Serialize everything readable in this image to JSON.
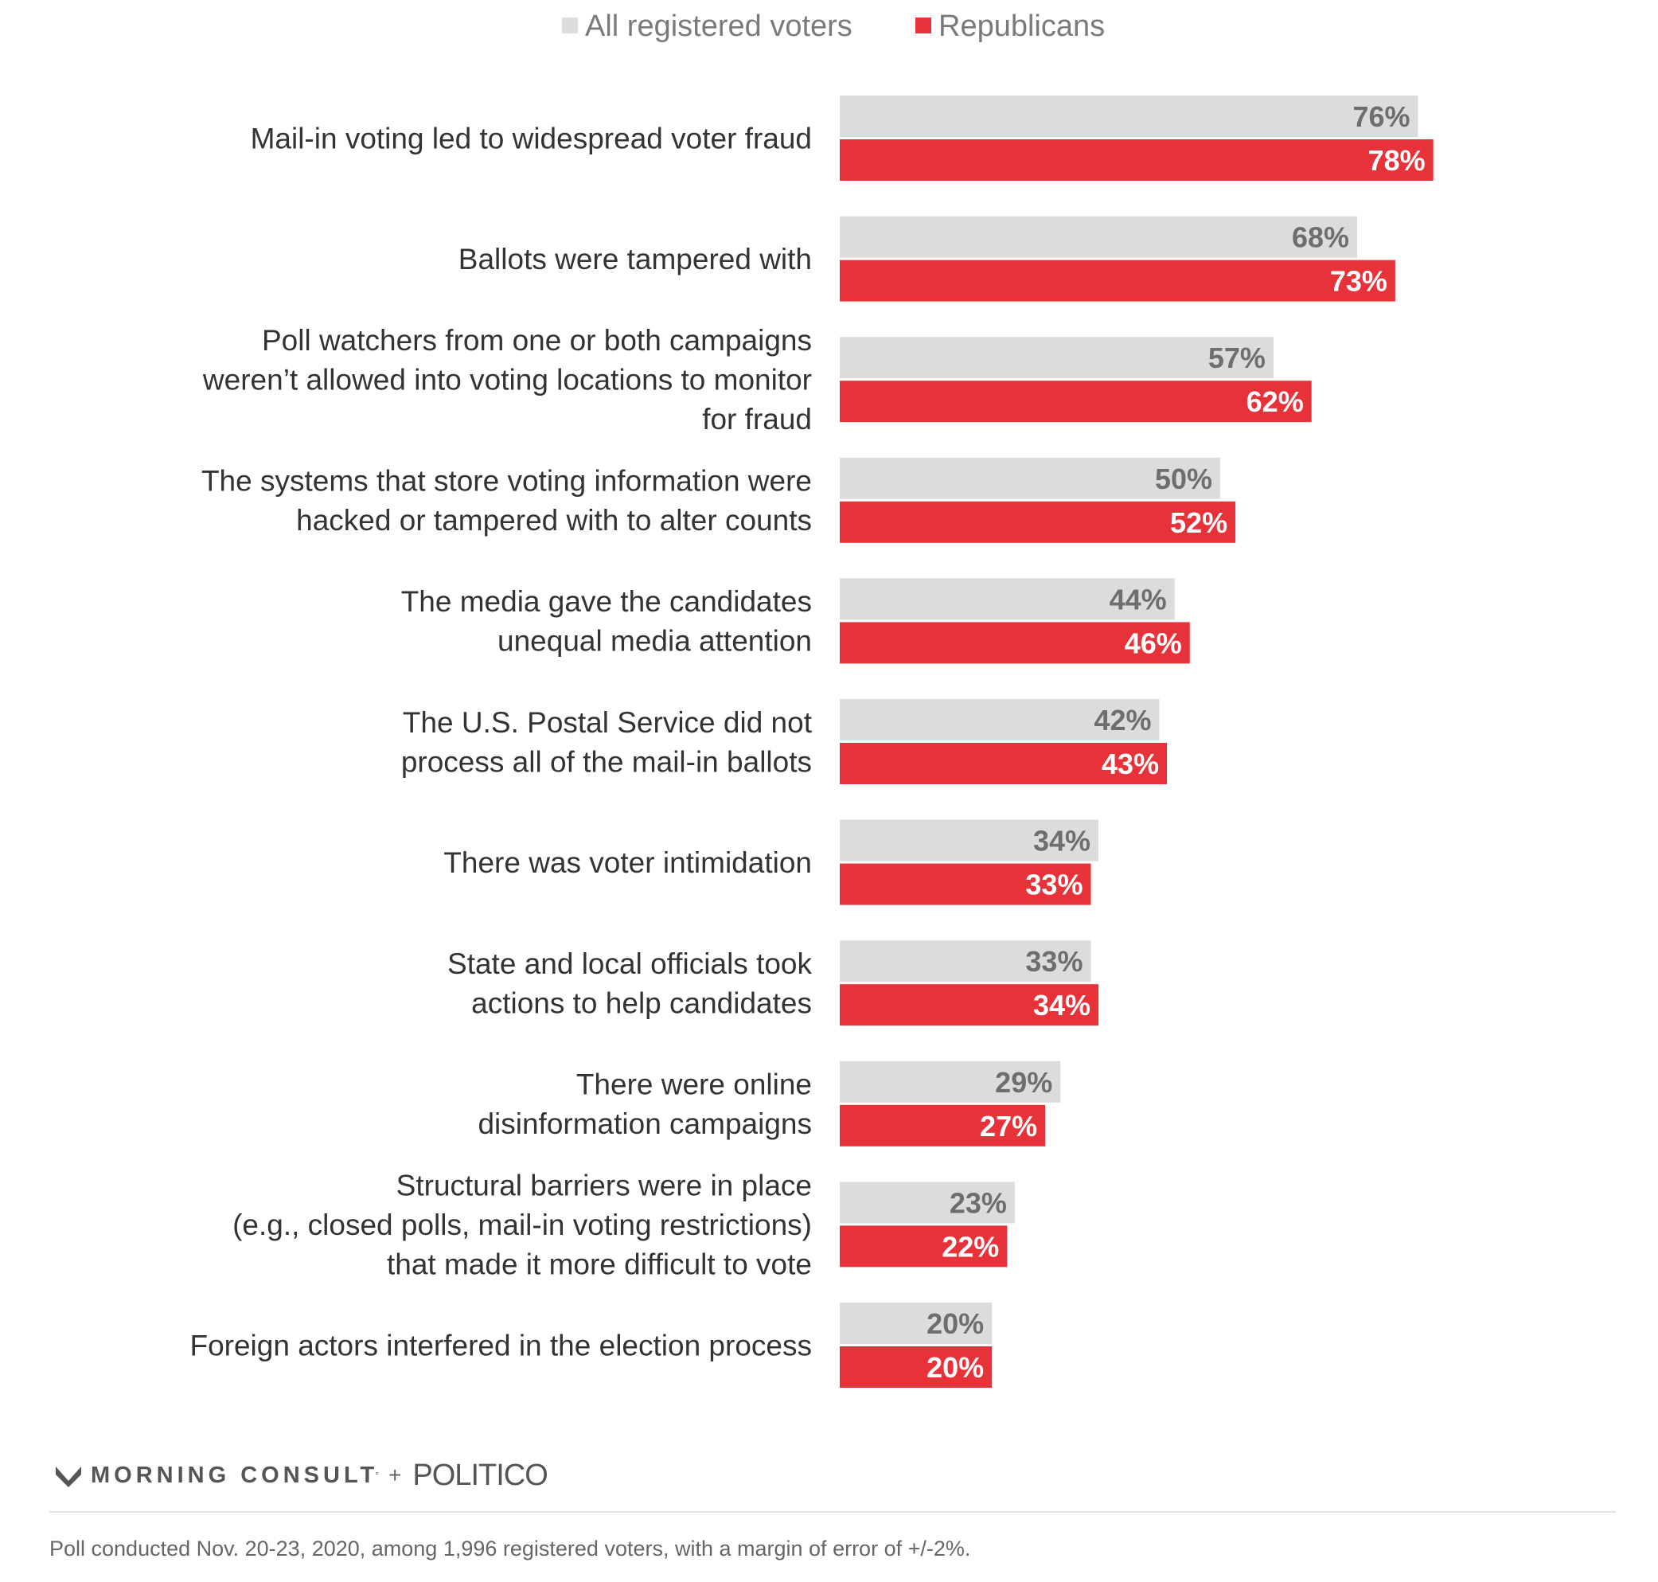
{
  "chart_data": {
    "type": "bar",
    "orientation": "horizontal",
    "legend_position": "top",
    "categories": [
      [
        "Mail-in voting led to widespread voter fraud"
      ],
      [
        "Ballots were tampered with"
      ],
      [
        "Poll watchers from one or both campaigns",
        "weren’t allowed into voting locations to monitor",
        "for fraud"
      ],
      [
        "The systems that store voting information were",
        "hacked or tampered with to alter counts"
      ],
      [
        "The media gave the candidates",
        "unequal media attention"
      ],
      [
        "The U.S. Postal Service did not",
        "process all of the mail-in ballots"
      ],
      [
        "There was voter intimidation"
      ],
      [
        "State and local officials took",
        "actions to help candidates"
      ],
      [
        "There were online",
        "disinformation campaigns"
      ],
      [
        "Structural barriers were in place",
        "(e.g., closed polls, mail-in voting restrictions)",
        "that made it more difficult to vote"
      ],
      [
        "Foreign actors interfered in the election process"
      ]
    ],
    "series": [
      {
        "name": "All registered voters",
        "color": "#dcdcdc",
        "label_color": "#6e6e6e",
        "values": [
          76,
          68,
          57,
          50,
          44,
          42,
          34,
          33,
          29,
          23,
          20
        ],
        "labels": [
          "76%",
          "68%",
          "57%",
          "50%",
          "44%",
          "42%",
          "34%",
          "33%",
          "29%",
          "23%",
          "20%"
        ]
      },
      {
        "name": "Republicans",
        "color": "#e8323a",
        "label_color": "#ffffff",
        "values": [
          78,
          73,
          62,
          52,
          46,
          43,
          33,
          34,
          27,
          22,
          20
        ],
        "labels": [
          "78%",
          "73%",
          "62%",
          "52%",
          "46%",
          "43%",
          "33%",
          "34%",
          "27%",
          "22%",
          "20%"
        ]
      }
    ],
    "xlim": [
      0,
      100
    ],
    "grid": false
  },
  "footer": {
    "brand_icon": "morning-consult-m-logo",
    "brand_text": "MORNING CONSULT",
    "brand_mark": "°",
    "plus": "+",
    "partner": "POLITICO",
    "note": "Poll conducted Nov. 20-23, 2020, among 1,996 registered voters, with a margin of error of +/-2%."
  }
}
